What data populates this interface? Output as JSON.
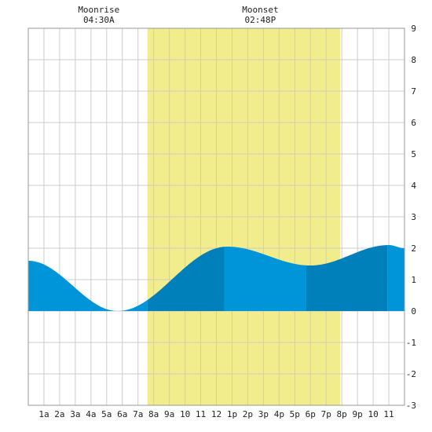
{
  "chart_data": {
    "type": "area",
    "title": "",
    "xlabel": "",
    "ylabel": "",
    "x_range": [
      0,
      24
    ],
    "ylim": [
      -3,
      9
    ],
    "y_ticks": [
      -3,
      -2,
      -1,
      0,
      1,
      2,
      3,
      4,
      5,
      6,
      7,
      8,
      9
    ],
    "x_tick_labels": [
      "1a",
      "2a",
      "3a",
      "4a",
      "5a",
      "6a",
      "7a",
      "8a",
      "9a",
      "10",
      "11",
      "12",
      "1p",
      "2p",
      "3p",
      "4p",
      "5p",
      "6p",
      "7p",
      "8p",
      "9p",
      "10",
      "11"
    ],
    "grid": true,
    "daylight": {
      "start_hour": 7.6,
      "end_hour": 19.9,
      "color": "#f2ed8c"
    },
    "annotations": [
      {
        "label": "Moonrise",
        "time": "04:30A",
        "hour": 4.5
      },
      {
        "label": "Moonset",
        "time": "02:48P",
        "hour": 14.8
      }
    ],
    "tide_extrema": [
      {
        "hour": 0.0,
        "height": 1.6
      },
      {
        "hour": 5.7,
        "height": 0.0
      },
      {
        "hour": 12.7,
        "height": 2.05
      },
      {
        "hour": 18.0,
        "height": 1.45
      },
      {
        "hour": 23.0,
        "height": 2.1
      },
      {
        "hour": 24.0,
        "height": 2.0
      }
    ],
    "band_boundaries": [
      7.6,
      12.5,
      17.7,
      22.9
    ],
    "colors": {
      "light_fill": "#0095d9",
      "dark_fill": "#0080ba",
      "grid": "#cccccc",
      "border": "#999999"
    }
  }
}
